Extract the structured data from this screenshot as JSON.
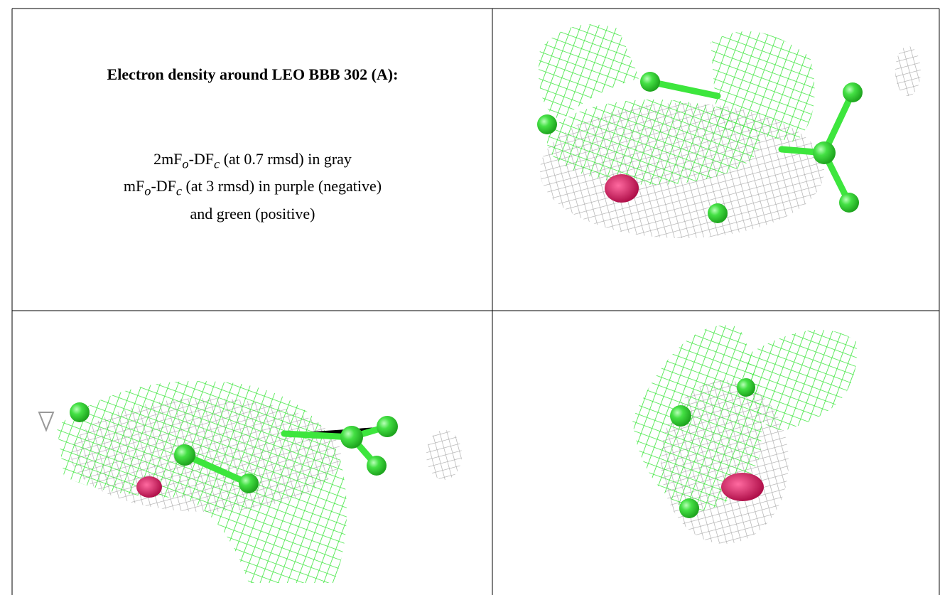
{
  "title": "Electron density around LEO BBB 302 (A):",
  "legend_lines": [
    [
      {
        "text": "2mF"
      },
      {
        "sub": "o"
      },
      {
        "text": "-DF"
      },
      {
        "sub": "c"
      },
      {
        "text": " (at 0.7 rmsd) in gray"
      }
    ],
    [
      {
        "text": "mF"
      },
      {
        "sub": "o"
      },
      {
        "text": "-DF"
      },
      {
        "sub": "c"
      },
      {
        "text": " (at 3 rmsd) in purple (negative)"
      }
    ],
    [
      {
        "text": "and green (positive)"
      }
    ]
  ]
}
